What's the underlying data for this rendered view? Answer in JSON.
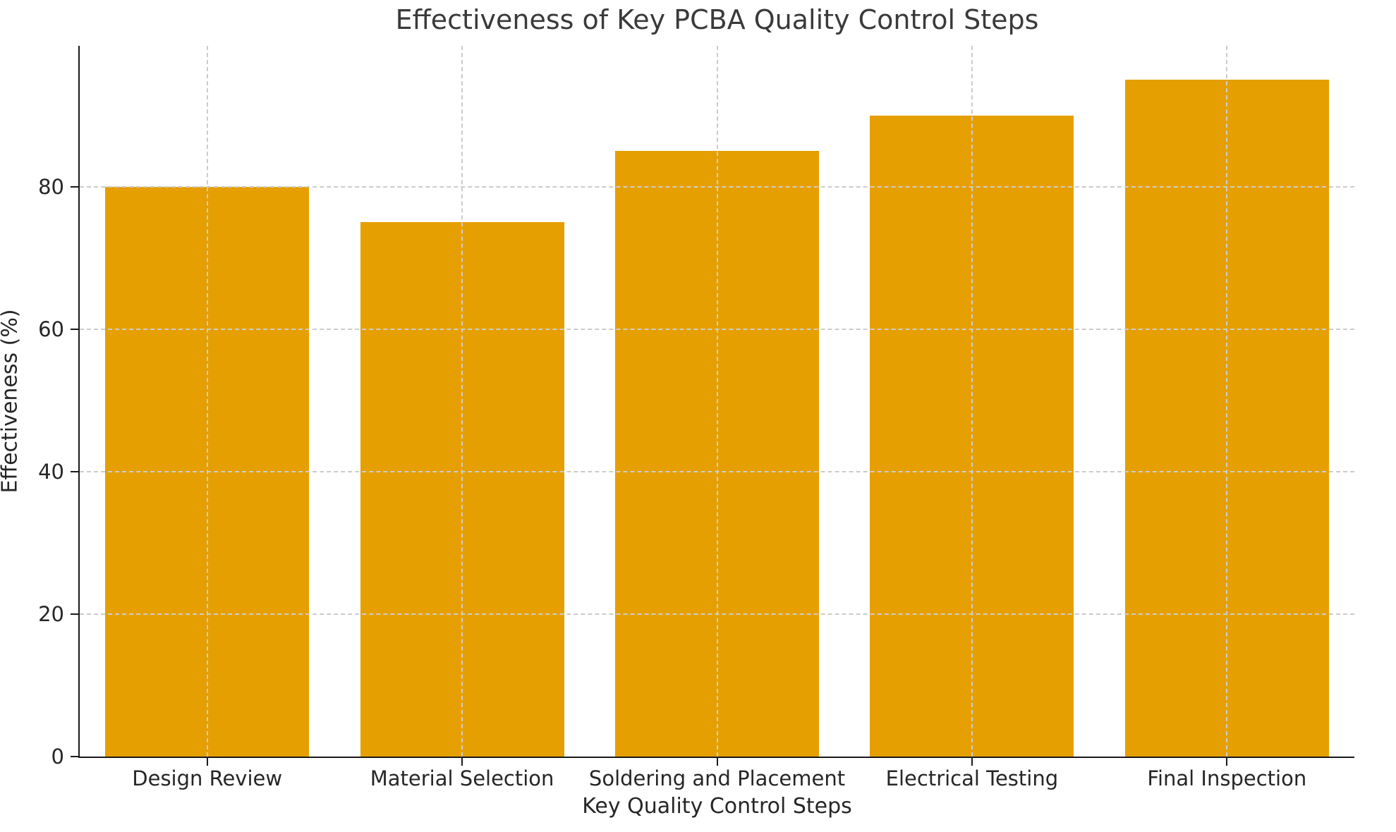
{
  "chart_data": {
    "type": "bar",
    "title": "Effectiveness of Key PCBA Quality Control Steps",
    "xlabel": "Key Quality Control Steps",
    "ylabel": "Effectiveness (%)",
    "categories": [
      "Design Review",
      "Material Selection",
      "Soldering and Placement",
      "Electrical Testing",
      "Final Inspection"
    ],
    "values": [
      80,
      75,
      85,
      90,
      95
    ],
    "yticks": [
      0,
      20,
      40,
      60,
      80
    ],
    "ylim": [
      0,
      99.75
    ],
    "legend": "none",
    "grid": "dashed gridlines on both axes, drawn above bars",
    "bar_width_fraction": 0.8,
    "colors": {
      "bar": "#E69F00",
      "grid": "#CCCCCC",
      "axis": "#1A1A1A",
      "tick_text": "#262626",
      "title_text": "#3A3A3A",
      "background": "#FFFFFF"
    }
  }
}
